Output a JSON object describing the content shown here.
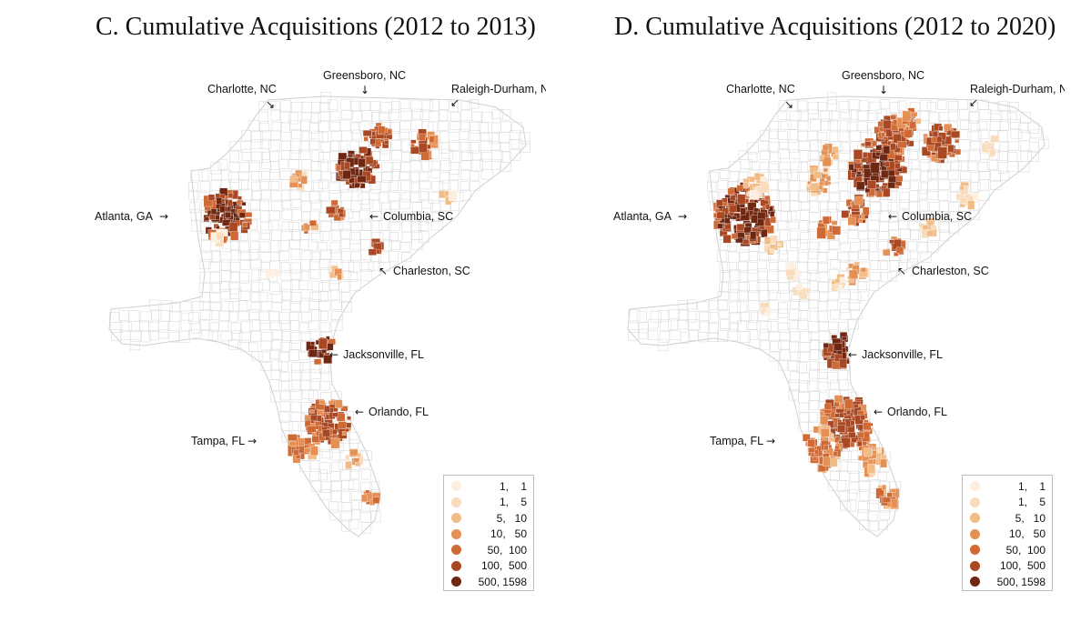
{
  "panels": [
    {
      "id": "c",
      "title": "C. Cumulative Acquisitions (2012 to 2013)",
      "cities": [
        {
          "name": "Charlotte, NC",
          "arrow": "↘"
        },
        {
          "name": "Greensboro, NC",
          "arrow": "↓"
        },
        {
          "name": "Raleigh-Durham, NC",
          "arrow": "↙"
        },
        {
          "name": "Atlanta, GA",
          "arrow": "→"
        },
        {
          "name": "Columbia, SC",
          "arrow": "←"
        },
        {
          "name": "Charleston, SC",
          "arrow": "↖"
        },
        {
          "name": "Jacksonville, FL",
          "arrow": "←"
        },
        {
          "name": "Orlando, FL",
          "arrow": "←"
        },
        {
          "name": "Tampa, FL",
          "arrow": "→"
        }
      ]
    },
    {
      "id": "d",
      "title": "D. Cumulative Acquisitions (2012 to 2020)",
      "cities": [
        {
          "name": "Charlotte, NC",
          "arrow": "↘"
        },
        {
          "name": "Greensboro, NC",
          "arrow": "↓"
        },
        {
          "name": "Raleigh-Durham, NC",
          "arrow": "↙"
        },
        {
          "name": "Atlanta, GA",
          "arrow": "→"
        },
        {
          "name": "Columbia, SC",
          "arrow": "←"
        },
        {
          "name": "Charleston, SC",
          "arrow": "↖"
        },
        {
          "name": "Jacksonville, FL",
          "arrow": "←"
        },
        {
          "name": "Orlando, FL",
          "arrow": "←"
        },
        {
          "name": "Tampa, FL",
          "arrow": "→"
        }
      ]
    }
  ],
  "legend": [
    {
      "label": "1,    1",
      "color": "#fdeee0"
    },
    {
      "label": "1,    5",
      "color": "#f8dcbc"
    },
    {
      "label": "5,   10",
      "color": "#f1bc86"
    },
    {
      "label": "10,   50",
      "color": "#e59055"
    },
    {
      "label": "50,  100",
      "color": "#cf6a35"
    },
    {
      "label": "100,  500",
      "color": "#a94822"
    },
    {
      "label": "500, 1598",
      "color": "#6f2712"
    }
  ],
  "colors": {
    "outline": "#cfcfcf",
    "background": "#ffffff"
  }
}
